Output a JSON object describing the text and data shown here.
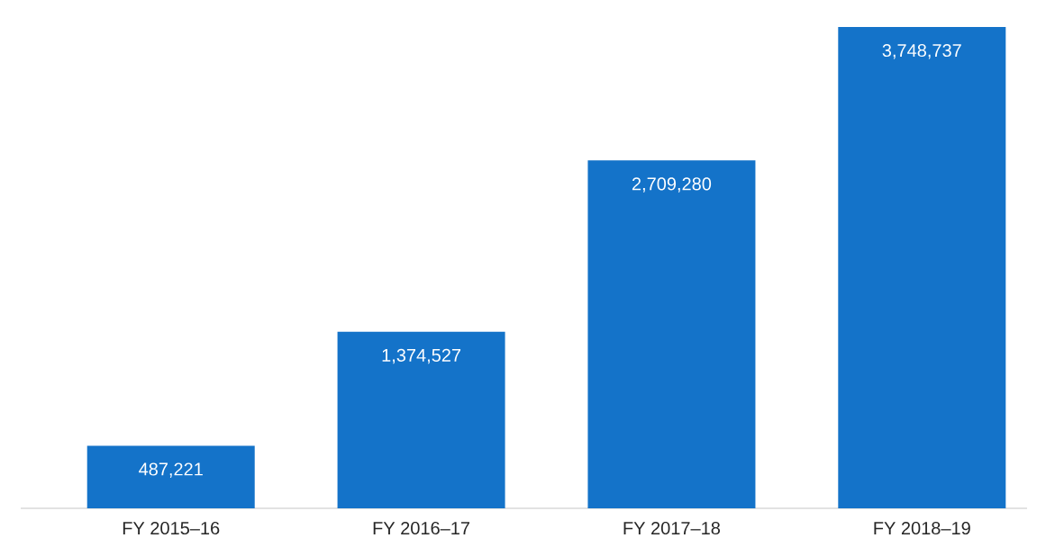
{
  "chart_data": {
    "type": "bar",
    "categories": [
      "FY 2015–16",
      "FY 2016–17",
      "FY 2017–18",
      "FY 2018–19"
    ],
    "values": [
      487221,
      1374527,
      2709280,
      3748737
    ],
    "value_labels": [
      "487,221",
      "1,374,527",
      "2,709,280",
      "3,748,737"
    ],
    "color": "#1473c9"
  }
}
